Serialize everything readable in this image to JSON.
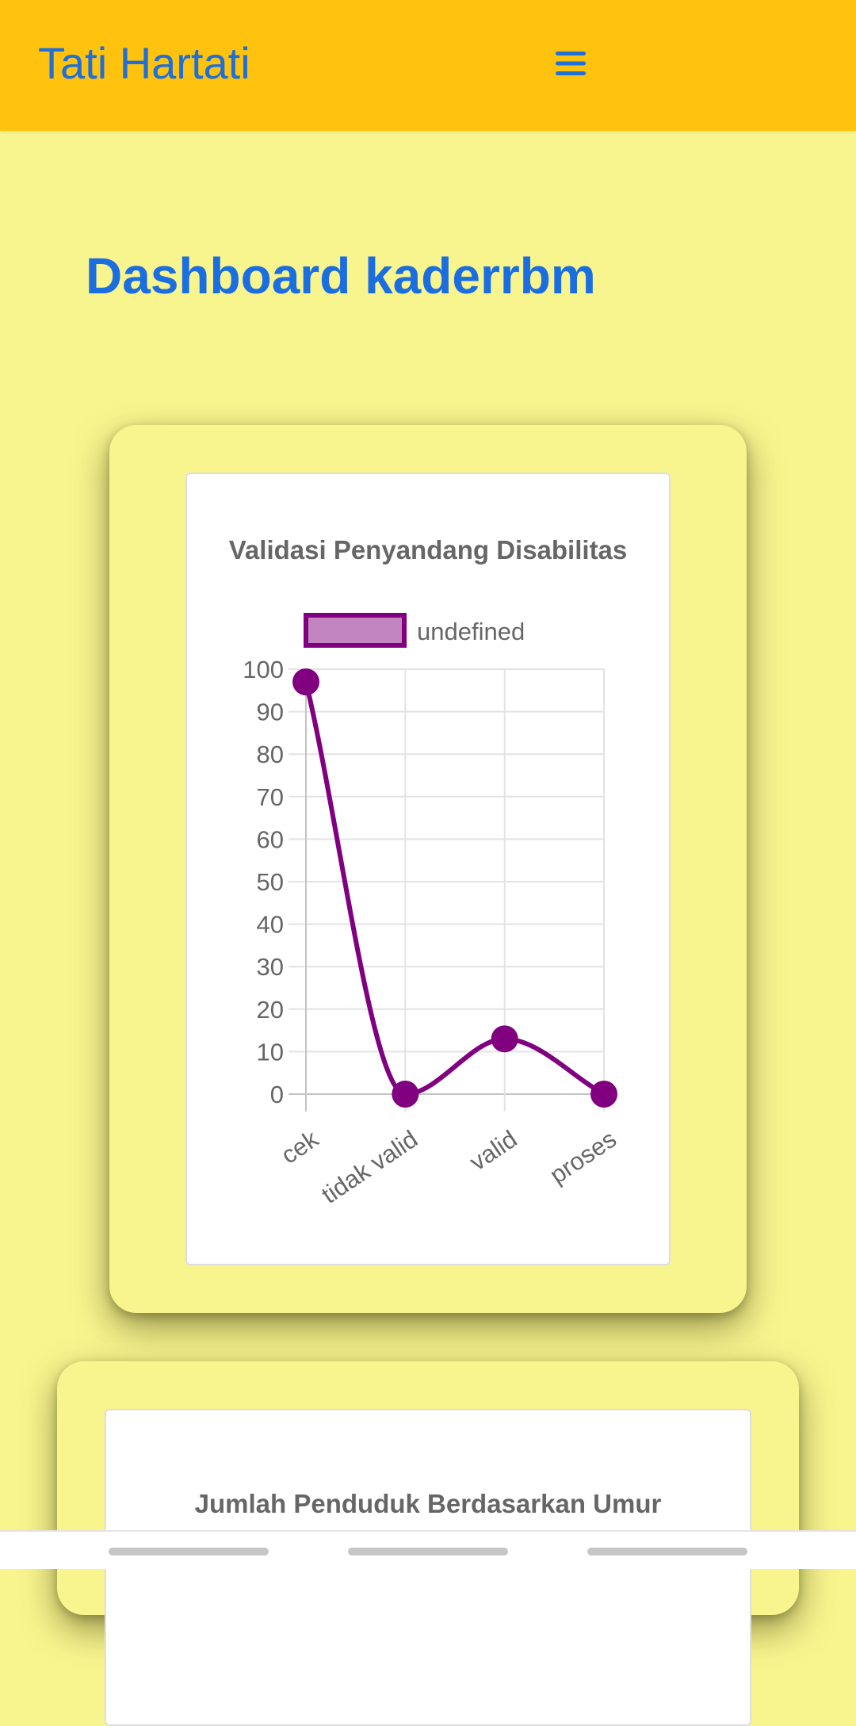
{
  "header": {
    "brand": "Tati Hartati",
    "menu_icon": "hamburger-menu-icon",
    "background": "#ffc20e",
    "text_color": "#1f6fd8"
  },
  "page": {
    "title": "Dashboard kaderrbm",
    "background": "#f8f48e"
  },
  "charts": {
    "validasi": {
      "title": "Validasi Penyandang Disabilitas"
    },
    "umur": {
      "title": "Jumlah Penduduk Berdasarkan Umur"
    }
  },
  "chart_data": [
    {
      "type": "line",
      "title": "Validasi Penyandang Disabilitas",
      "categories": [
        "cek",
        "tidak valid",
        "valid",
        "proses"
      ],
      "series": [
        {
          "name": "undefined",
          "values": [
            97,
            0,
            13,
            0
          ],
          "color": "#800080",
          "fill": "#c285c2"
        }
      ],
      "ylim": [
        0,
        100
      ],
      "yticks": [
        0,
        10,
        20,
        30,
        40,
        50,
        60,
        70,
        80,
        90,
        100
      ],
      "grid": true,
      "legend": "top"
    },
    {
      "type": "line",
      "title": "Jumlah Penduduk Berdasarkan Umur"
    }
  ],
  "nav_bar": {
    "items": [
      "nav-pill-1",
      "nav-pill-2",
      "nav-pill-3"
    ]
  }
}
